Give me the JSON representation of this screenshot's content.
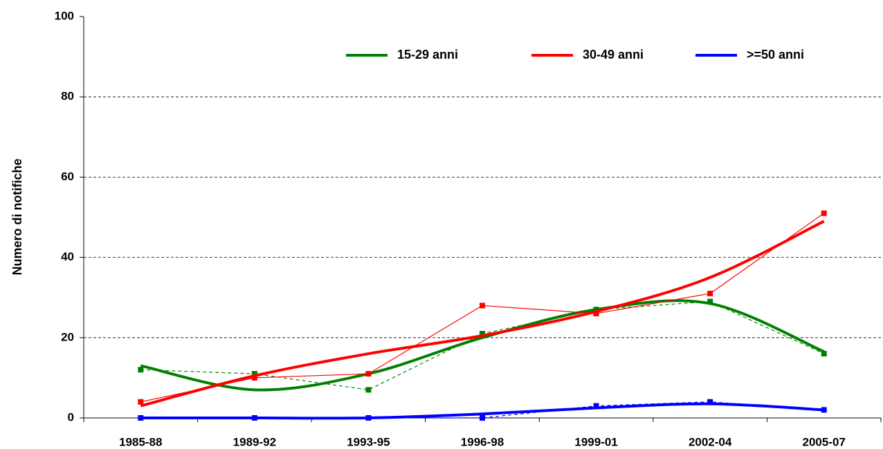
{
  "chart_data": {
    "type": "line",
    "y_label": "Numero di notifiche",
    "categories": [
      "1985-88",
      "1989-92",
      "1993-95",
      "1996-98",
      "1999-01",
      "2002-04",
      "2005-07"
    ],
    "series": [
      {
        "name": "15-29 anni",
        "color": "#008000",
        "dashed": true,
        "values": [
          12,
          11,
          7,
          21,
          27,
          29,
          16
        ],
        "trend": [
          13,
          7,
          11,
          20,
          27,
          28.5,
          16.5
        ]
      },
      {
        "name": "30-49 anni",
        "color": "#ff0000",
        "dashed": false,
        "values": [
          4,
          10,
          11,
          28,
          26,
          31,
          51
        ],
        "trend": [
          3,
          10.5,
          16,
          20.5,
          26.5,
          35,
          49
        ]
      },
      {
        "name": ">=50 anni",
        "color": "#0000ff",
        "dashed": true,
        "values": [
          0,
          0,
          0,
          0,
          3,
          4,
          2
        ],
        "trend": [
          0,
          0,
          0,
          1,
          2.5,
          3.5,
          2
        ]
      }
    ],
    "ylim": [
      0,
      100
    ],
    "yticks": [
      0,
      20,
      40,
      60,
      80,
      100
    ],
    "grid": true,
    "legend": "top"
  }
}
